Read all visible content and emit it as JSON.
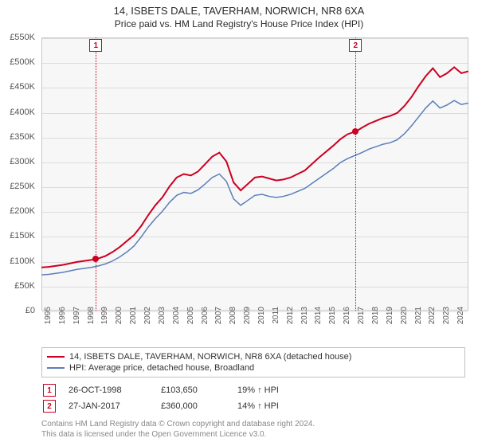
{
  "title": "14, ISBETS DALE, TAVERHAM, NORWICH, NR8 6XA",
  "subtitle": "Price paid vs. HM Land Registry's House Price Index (HPI)",
  "chart": {
    "type": "line",
    "background_color": "#f7f7f7",
    "grid_color": "#dcdcdc",
    "border_color": "#c8c8c8",
    "x_years": [
      1995,
      1996,
      1997,
      1998,
      1999,
      2000,
      2001,
      2002,
      2003,
      2004,
      2005,
      2006,
      2007,
      2008,
      2009,
      2010,
      2011,
      2012,
      2013,
      2014,
      2015,
      2016,
      2017,
      2018,
      2019,
      2020,
      2021,
      2022,
      2023,
      2024
    ],
    "x_domain": [
      1995,
      2025
    ],
    "y_domain_k": [
      0,
      550
    ],
    "y_ticks": [
      "£0",
      "£50K",
      "£100K",
      "£150K",
      "£200K",
      "£250K",
      "£300K",
      "£350K",
      "£400K",
      "£450K",
      "£500K",
      "£550K"
    ],
    "y_tick_vals_k": [
      0,
      50,
      100,
      150,
      200,
      250,
      300,
      350,
      400,
      450,
      500,
      550
    ],
    "series": [
      {
        "id": "price_series",
        "label": "14, ISBETS DALE, TAVERHAM, NORWICH, NR8 6XA (detached house)",
        "color": "#cc0022",
        "width": 2,
        "points": [
          [
            1995.0,
            87
          ],
          [
            1995.5,
            88
          ],
          [
            1996.0,
            90
          ],
          [
            1996.5,
            92
          ],
          [
            1997.0,
            95
          ],
          [
            1997.5,
            98
          ],
          [
            1998.0,
            100
          ],
          [
            1998.5,
            102
          ],
          [
            1998.82,
            104
          ],
          [
            1999.0,
            105
          ],
          [
            1999.5,
            110
          ],
          [
            2000.0,
            118
          ],
          [
            2000.5,
            128
          ],
          [
            2001.0,
            140
          ],
          [
            2001.5,
            152
          ],
          [
            2002.0,
            170
          ],
          [
            2002.5,
            192
          ],
          [
            2003.0,
            212
          ],
          [
            2003.5,
            228
          ],
          [
            2004.0,
            250
          ],
          [
            2004.5,
            268
          ],
          [
            2005.0,
            275
          ],
          [
            2005.5,
            272
          ],
          [
            2006.0,
            280
          ],
          [
            2006.5,
            295
          ],
          [
            2007.0,
            310
          ],
          [
            2007.5,
            318
          ],
          [
            2008.0,
            300
          ],
          [
            2008.5,
            258
          ],
          [
            2009.0,
            242
          ],
          [
            2009.5,
            255
          ],
          [
            2010.0,
            268
          ],
          [
            2010.5,
            270
          ],
          [
            2011.0,
            266
          ],
          [
            2011.5,
            262
          ],
          [
            2012.0,
            264
          ],
          [
            2012.5,
            268
          ],
          [
            2013.0,
            275
          ],
          [
            2013.5,
            282
          ],
          [
            2014.0,
            295
          ],
          [
            2014.5,
            308
          ],
          [
            2015.0,
            320
          ],
          [
            2015.5,
            332
          ],
          [
            2016.0,
            345
          ],
          [
            2016.5,
            355
          ],
          [
            2017.0,
            360
          ],
          [
            2017.07,
            360
          ],
          [
            2017.5,
            368
          ],
          [
            2018.0,
            376
          ],
          [
            2018.5,
            382
          ],
          [
            2019.0,
            388
          ],
          [
            2019.5,
            392
          ],
          [
            2020.0,
            398
          ],
          [
            2020.5,
            412
          ],
          [
            2021.0,
            430
          ],
          [
            2021.5,
            452
          ],
          [
            2022.0,
            472
          ],
          [
            2022.5,
            488
          ],
          [
            2023.0,
            470
          ],
          [
            2023.5,
            478
          ],
          [
            2024.0,
            490
          ],
          [
            2024.5,
            478
          ],
          [
            2025.0,
            482
          ]
        ]
      },
      {
        "id": "hpi_series",
        "label": "HPI: Average price, detached house, Broadland",
        "color": "#5a7fb8",
        "width": 1.5,
        "points": [
          [
            1995.0,
            72
          ],
          [
            1995.5,
            73
          ],
          [
            1996.0,
            75
          ],
          [
            1996.5,
            77
          ],
          [
            1997.0,
            80
          ],
          [
            1997.5,
            83
          ],
          [
            1998.0,
            85
          ],
          [
            1998.5,
            87
          ],
          [
            1999.0,
            90
          ],
          [
            1999.5,
            94
          ],
          [
            2000.0,
            100
          ],
          [
            2000.5,
            108
          ],
          [
            2001.0,
            118
          ],
          [
            2001.5,
            130
          ],
          [
            2002.0,
            148
          ],
          [
            2002.5,
            168
          ],
          [
            2003.0,
            185
          ],
          [
            2003.5,
            200
          ],
          [
            2004.0,
            218
          ],
          [
            2004.5,
            232
          ],
          [
            2005.0,
            238
          ],
          [
            2005.5,
            236
          ],
          [
            2006.0,
            243
          ],
          [
            2006.5,
            255
          ],
          [
            2007.0,
            268
          ],
          [
            2007.5,
            275
          ],
          [
            2008.0,
            260
          ],
          [
            2008.5,
            225
          ],
          [
            2009.0,
            212
          ],
          [
            2009.5,
            222
          ],
          [
            2010.0,
            232
          ],
          [
            2010.5,
            234
          ],
          [
            2011.0,
            230
          ],
          [
            2011.5,
            228
          ],
          [
            2012.0,
            230
          ],
          [
            2012.5,
            234
          ],
          [
            2013.0,
            240
          ],
          [
            2013.5,
            246
          ],
          [
            2014.0,
            256
          ],
          [
            2014.5,
            266
          ],
          [
            2015.0,
            276
          ],
          [
            2015.5,
            286
          ],
          [
            2016.0,
            298
          ],
          [
            2016.5,
            306
          ],
          [
            2017.0,
            312
          ],
          [
            2017.5,
            318
          ],
          [
            2018.0,
            325
          ],
          [
            2018.5,
            330
          ],
          [
            2019.0,
            335
          ],
          [
            2019.5,
            338
          ],
          [
            2020.0,
            344
          ],
          [
            2020.5,
            356
          ],
          [
            2021.0,
            372
          ],
          [
            2021.5,
            390
          ],
          [
            2022.0,
            408
          ],
          [
            2022.5,
            422
          ],
          [
            2023.0,
            408
          ],
          [
            2023.5,
            414
          ],
          [
            2024.0,
            423
          ],
          [
            2024.5,
            415
          ],
          [
            2025.0,
            418
          ]
        ]
      }
    ],
    "sale_markers": [
      {
        "n": "1",
        "year": 1998.82,
        "value_k": 104,
        "color": "#cc0022"
      },
      {
        "n": "2",
        "year": 2017.07,
        "value_k": 360,
        "color": "#cc0022"
      }
    ]
  },
  "legend": {
    "price_label": "14, ISBETS DALE, TAVERHAM, NORWICH, NR8 6XA (detached house)",
    "hpi_label": "HPI: Average price, detached house, Broadland",
    "price_color": "#cc0022",
    "hpi_color": "#5a7fb8"
  },
  "sales": [
    {
      "n": "1",
      "date": "26-OCT-1998",
      "price": "£103,650",
      "pct": "19% ↑ HPI",
      "color": "#cc0022"
    },
    {
      "n": "2",
      "date": "27-JAN-2017",
      "price": "£360,000",
      "pct": "14% ↑ HPI",
      "color": "#cc0022"
    }
  ],
  "license": {
    "line1": "Contains HM Land Registry data © Crown copyright and database right 2024.",
    "line2": "This data is licensed under the Open Government Licence v3.0."
  }
}
